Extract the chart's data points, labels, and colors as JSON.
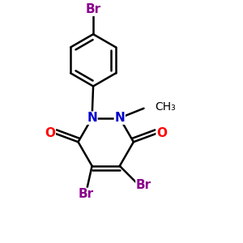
{
  "bg_color": "#ffffff",
  "bond_color": "#000000",
  "N_color": "#0000cc",
  "O_color": "#ff0000",
  "Br_color": "#8b008b",
  "line_width": 1.8,
  "dbo": 0.016,
  "figsize": [
    3.0,
    3.0
  ],
  "dpi": 100,
  "xlim": [
    0,
    1
  ],
  "ylim": [
    0,
    1
  ]
}
